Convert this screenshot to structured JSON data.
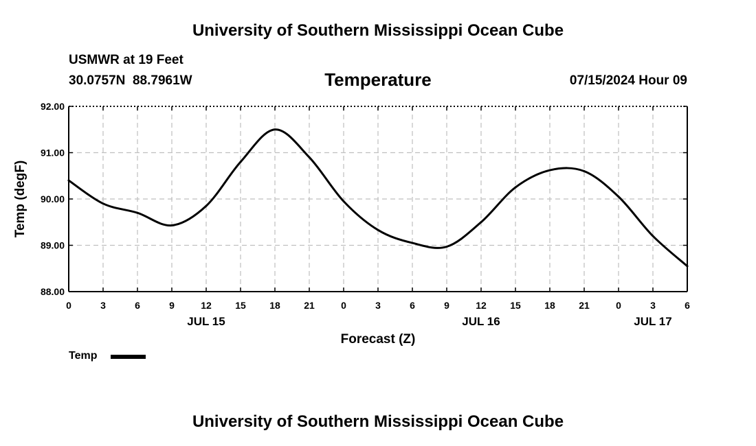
{
  "header": {
    "title": "University of Southern Mississippi Ocean Cube",
    "station": "USMWR at 19 Feet",
    "coords": "30.0757N  88.7961W",
    "chart_title": "Temperature",
    "timestamp": "07/15/2024 Hour 09"
  },
  "footer": {
    "title": "University of Southern Mississippi Ocean Cube"
  },
  "legend": {
    "label": "Temp"
  },
  "colors": {
    "line": "#000000",
    "grid": "#bfbfbf",
    "background": "#ffffff"
  },
  "chart_data": {
    "type": "line",
    "title": "Temperature",
    "xlabel": "Forecast (Z)",
    "ylabel": "Temp (degF)",
    "xlim": [
      0,
      54
    ],
    "ylim": [
      88,
      92
    ],
    "yticks": [
      88,
      89,
      90,
      91,
      92
    ],
    "ytick_labels": [
      "88.00",
      "89.00",
      "90.00",
      "91.00",
      "92.00"
    ],
    "xticks": [
      0,
      3,
      6,
      9,
      12,
      15,
      18,
      21,
      24,
      27,
      30,
      33,
      36,
      39,
      42,
      45,
      48,
      51,
      54
    ],
    "xtick_labels": [
      "0",
      "3",
      "6",
      "9",
      "12",
      "15",
      "18",
      "21",
      "0",
      "3",
      "6",
      "9",
      "12",
      "15",
      "18",
      "21",
      "0",
      "3",
      "6"
    ],
    "date_labels": [
      {
        "x": 12,
        "text": "JUL 15"
      },
      {
        "x": 36,
        "text": "JUL 16"
      },
      {
        "x": 51,
        "text": "JUL 17"
      }
    ],
    "grid": true,
    "legend_position": "bottom-left",
    "series": [
      {
        "name": "Temp",
        "x": [
          0,
          3,
          6,
          9,
          12,
          15,
          18,
          21,
          24,
          27,
          30,
          33,
          36,
          39,
          42,
          45,
          48,
          51,
          54
        ],
        "values": [
          90.4,
          89.9,
          89.7,
          89.43,
          89.85,
          90.8,
          91.5,
          90.9,
          89.95,
          89.33,
          89.05,
          88.97,
          89.5,
          90.25,
          90.62,
          90.6,
          90.05,
          89.2,
          88.55
        ]
      }
    ]
  }
}
